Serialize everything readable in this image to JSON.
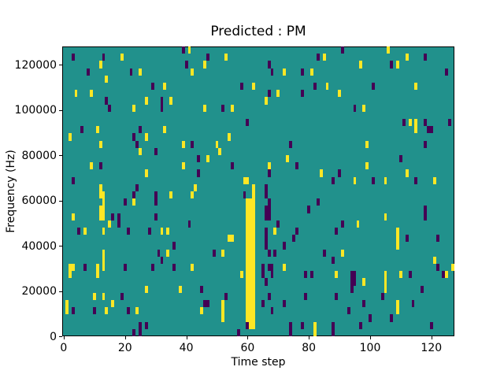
{
  "chart_data": {
    "type": "heatmap",
    "title": "Predicted : PM",
    "xlabel": "Time step",
    "ylabel": "Frequency (Hz)",
    "x_ticks": [
      0,
      20,
      40,
      60,
      80,
      100,
      120
    ],
    "x_tick_labels": [
      "0",
      "20",
      "40",
      "60",
      "80",
      "100",
      "120"
    ],
    "y_ticks": [
      0,
      20000,
      40000,
      60000,
      80000,
      100000,
      120000
    ],
    "y_tick_labels": [
      "0",
      "20000",
      "40000",
      "60000",
      "80000",
      "100000",
      "120000"
    ],
    "x_range": [
      0,
      128
    ],
    "y_range": [
      0,
      128000
    ],
    "grid": {
      "cols": 128,
      "rows": 40,
      "row_origin": "top"
    },
    "legend": "none",
    "colors": {
      "background_teal": "#21918c",
      "cell_yellow": "#fde725",
      "cell_purple": "#440154",
      "text": "#000000"
    },
    "cells_yellow": [
      [
        41,
        0
      ],
      [
        106,
        0
      ],
      [
        19,
        1
      ],
      [
        53,
        1
      ],
      [
        85,
        1
      ],
      [
        112,
        1
      ],
      [
        12,
        2
      ],
      [
        46,
        2
      ],
      [
        97,
        2
      ],
      [
        109,
        2
      ],
      [
        25,
        3
      ],
      [
        42,
        3
      ],
      [
        72,
        3
      ],
      [
        81,
        3
      ],
      [
        14,
        4
      ],
      [
        33,
        5
      ],
      [
        62,
        5
      ],
      [
        86,
        5
      ],
      [
        115,
        5
      ],
      [
        4,
        6
      ],
      [
        9,
        6
      ],
      [
        70,
        6
      ],
      [
        90,
        6
      ],
      [
        27,
        7
      ],
      [
        35,
        7
      ],
      [
        66,
        7
      ],
      [
        23,
        8
      ],
      [
        46,
        8
      ],
      [
        55,
        8
      ],
      [
        98,
        8
      ],
      [
        113,
        10
      ],
      [
        115,
        10
      ],
      [
        11,
        11
      ],
      [
        33,
        11
      ],
      [
        115,
        11
      ],
      [
        2,
        12
      ],
      [
        27,
        12
      ],
      [
        54,
        12
      ],
      [
        12,
        13
      ],
      [
        39,
        13
      ],
      [
        50,
        13
      ],
      [
        99,
        13
      ],
      [
        25,
        14
      ],
      [
        51,
        14
      ],
      [
        47,
        15
      ],
      [
        73,
        15
      ],
      [
        9,
        16
      ],
      [
        39,
        16
      ],
      [
        67,
        16
      ],
      [
        99,
        16
      ],
      [
        27,
        17
      ],
      [
        84,
        17
      ],
      [
        112,
        17
      ],
      [
        59,
        18
      ],
      [
        60,
        18
      ],
      [
        95,
        18
      ],
      [
        105,
        18
      ],
      [
        121,
        18
      ],
      [
        12,
        19
      ],
      [
        43,
        19
      ],
      [
        62,
        19
      ],
      [
        12,
        20
      ],
      [
        13,
        20
      ],
      [
        35,
        20
      ],
      [
        42,
        20
      ],
      [
        62,
        20
      ],
      [
        13,
        21
      ],
      [
        23,
        21
      ],
      [
        60,
        21
      ],
      [
        61,
        21
      ],
      [
        62,
        21
      ],
      [
        12,
        22
      ],
      [
        13,
        22
      ],
      [
        60,
        22
      ],
      [
        61,
        22
      ],
      [
        62,
        22
      ],
      [
        3,
        23
      ],
      [
        12,
        23
      ],
      [
        13,
        23
      ],
      [
        60,
        23
      ],
      [
        61,
        23
      ],
      [
        62,
        23
      ],
      [
        105,
        23
      ],
      [
        15,
        24
      ],
      [
        60,
        24
      ],
      [
        61,
        24
      ],
      [
        62,
        24
      ],
      [
        96,
        24
      ],
      [
        7,
        25
      ],
      [
        13,
        25
      ],
      [
        32,
        25
      ],
      [
        34,
        25
      ],
      [
        60,
        25
      ],
      [
        61,
        25
      ],
      [
        62,
        25
      ],
      [
        69,
        25
      ],
      [
        109,
        25
      ],
      [
        54,
        26
      ],
      [
        55,
        26
      ],
      [
        60,
        26
      ],
      [
        61,
        26
      ],
      [
        62,
        26
      ],
      [
        109,
        26
      ],
      [
        60,
        27
      ],
      [
        61,
        27
      ],
      [
        62,
        27
      ],
      [
        109,
        27
      ],
      [
        13,
        28
      ],
      [
        34,
        28
      ],
      [
        52,
        28
      ],
      [
        60,
        28
      ],
      [
        61,
        28
      ],
      [
        62,
        28
      ],
      [
        91,
        28
      ],
      [
        13,
        29
      ],
      [
        60,
        29
      ],
      [
        61,
        29
      ],
      [
        62,
        29
      ],
      [
        121,
        29
      ],
      [
        2,
        30
      ],
      [
        3,
        30
      ],
      [
        11,
        30
      ],
      [
        13,
        30
      ],
      [
        42,
        30
      ],
      [
        60,
        30
      ],
      [
        61,
        30
      ],
      [
        62,
        30
      ],
      [
        72,
        30
      ],
      [
        127,
        30
      ],
      [
        2,
        31
      ],
      [
        11,
        31
      ],
      [
        58,
        31
      ],
      [
        60,
        31
      ],
      [
        61,
        31
      ],
      [
        62,
        31
      ],
      [
        89,
        31
      ],
      [
        105,
        31
      ],
      [
        110,
        31
      ],
      [
        125,
        31
      ],
      [
        60,
        32
      ],
      [
        61,
        32
      ],
      [
        62,
        32
      ],
      [
        98,
        32
      ],
      [
        105,
        32
      ],
      [
        27,
        33
      ],
      [
        38,
        33
      ],
      [
        60,
        33
      ],
      [
        61,
        33
      ],
      [
        62,
        33
      ],
      [
        105,
        33
      ],
      [
        10,
        34
      ],
      [
        13,
        34
      ],
      [
        60,
        34
      ],
      [
        61,
        34
      ],
      [
        62,
        34
      ],
      [
        1,
        35
      ],
      [
        16,
        35
      ],
      [
        52,
        35
      ],
      [
        60,
        35
      ],
      [
        61,
        35
      ],
      [
        62,
        35
      ],
      [
        109,
        35
      ],
      [
        1,
        36
      ],
      [
        14,
        36
      ],
      [
        24,
        36
      ],
      [
        45,
        36
      ],
      [
        52,
        36
      ],
      [
        60,
        36
      ],
      [
        61,
        36
      ],
      [
        62,
        36
      ],
      [
        109,
        36
      ],
      [
        52,
        37
      ],
      [
        60,
        37
      ],
      [
        61,
        37
      ],
      [
        62,
        37
      ],
      [
        61,
        38
      ],
      [
        62,
        38
      ],
      [
        82,
        38
      ],
      [
        82,
        39
      ]
    ],
    "cells_purple": [
      [
        39,
        0
      ],
      [
        91,
        0
      ],
      [
        3,
        1
      ],
      [
        13,
        1
      ],
      [
        47,
        1
      ],
      [
        83,
        1
      ],
      [
        118,
        1
      ],
      [
        40,
        2
      ],
      [
        67,
        2
      ],
      [
        107,
        2
      ],
      [
        8,
        3
      ],
      [
        22,
        3
      ],
      [
        68,
        3
      ],
      [
        78,
        3
      ],
      [
        125,
        3
      ],
      [
        29,
        5
      ],
      [
        58,
        5
      ],
      [
        82,
        5
      ],
      [
        101,
        5
      ],
      [
        67,
        6
      ],
      [
        78,
        6
      ],
      [
        14,
        7
      ],
      [
        32,
        7
      ],
      [
        15,
        8
      ],
      [
        32,
        8
      ],
      [
        52,
        8
      ],
      [
        95,
        8
      ],
      [
        60,
        10
      ],
      [
        111,
        10
      ],
      [
        118,
        10
      ],
      [
        126,
        10
      ],
      [
        6,
        11
      ],
      [
        25,
        11
      ],
      [
        119,
        11
      ],
      [
        120,
        11
      ],
      [
        23,
        12
      ],
      [
        24,
        13
      ],
      [
        42,
        13
      ],
      [
        74,
        13
      ],
      [
        118,
        13
      ],
      [
        30,
        14
      ],
      [
        44,
        15
      ],
      [
        110,
        15
      ],
      [
        12,
        16
      ],
      [
        55,
        16
      ],
      [
        76,
        16
      ],
      [
        44,
        17
      ],
      [
        67,
        17
      ],
      [
        90,
        17
      ],
      [
        3,
        18
      ],
      [
        88,
        18
      ],
      [
        101,
        18
      ],
      [
        115,
        18
      ],
      [
        24,
        19
      ],
      [
        66,
        19
      ],
      [
        23,
        20
      ],
      [
        30,
        20
      ],
      [
        59,
        20
      ],
      [
        66,
        20
      ],
      [
        20,
        21
      ],
      [
        30,
        21
      ],
      [
        67,
        21
      ],
      [
        83,
        21
      ],
      [
        66,
        22
      ],
      [
        67,
        22
      ],
      [
        80,
        22
      ],
      [
        118,
        22
      ],
      [
        16,
        23
      ],
      [
        18,
        23
      ],
      [
        30,
        23
      ],
      [
        66,
        23
      ],
      [
        67,
        23
      ],
      [
        118,
        23
      ],
      [
        18,
        24
      ],
      [
        41,
        24
      ],
      [
        70,
        24
      ],
      [
        91,
        24
      ],
      [
        5,
        25
      ],
      [
        21,
        25
      ],
      [
        28,
        25
      ],
      [
        66,
        25
      ],
      [
        76,
        25
      ],
      [
        89,
        25
      ],
      [
        66,
        26
      ],
      [
        75,
        26
      ],
      [
        112,
        26
      ],
      [
        122,
        26
      ],
      [
        36,
        27
      ],
      [
        66,
        27
      ],
      [
        72,
        27
      ],
      [
        31,
        28
      ],
      [
        49,
        28
      ],
      [
        67,
        28
      ],
      [
        69,
        28
      ],
      [
        85,
        28
      ],
      [
        32,
        29
      ],
      [
        88,
        29
      ],
      [
        7,
        30
      ],
      [
        20,
        30
      ],
      [
        29,
        30
      ],
      [
        36,
        30
      ],
      [
        65,
        30
      ],
      [
        67,
        30
      ],
      [
        68,
        30
      ],
      [
        122,
        30
      ],
      [
        65,
        31
      ],
      [
        68,
        31
      ],
      [
        79,
        31
      ],
      [
        81,
        31
      ],
      [
        94,
        31
      ],
      [
        95,
        31
      ],
      [
        113,
        31
      ],
      [
        124,
        31
      ],
      [
        66,
        32
      ],
      [
        94,
        32
      ],
      [
        95,
        32
      ],
      [
        45,
        33
      ],
      [
        94,
        33
      ],
      [
        117,
        33
      ],
      [
        19,
        34
      ],
      [
        53,
        34
      ],
      [
        67,
        34
      ],
      [
        79,
        34
      ],
      [
        89,
        34
      ],
      [
        104,
        34
      ],
      [
        46,
        35
      ],
      [
        47,
        35
      ],
      [
        65,
        35
      ],
      [
        72,
        35
      ],
      [
        98,
        35
      ],
      [
        114,
        35
      ],
      [
        3,
        36
      ],
      [
        10,
        36
      ],
      [
        21,
        36
      ],
      [
        68,
        36
      ],
      [
        93,
        36
      ],
      [
        100,
        37
      ],
      [
        107,
        37
      ],
      [
        25,
        38
      ],
      [
        27,
        38
      ],
      [
        60,
        38
      ],
      [
        74,
        38
      ],
      [
        78,
        38
      ],
      [
        88,
        38
      ],
      [
        97,
        38
      ],
      [
        120,
        38
      ],
      [
        23,
        39
      ],
      [
        25,
        39
      ],
      [
        57,
        39
      ],
      [
        74,
        39
      ],
      [
        88,
        39
      ]
    ]
  }
}
